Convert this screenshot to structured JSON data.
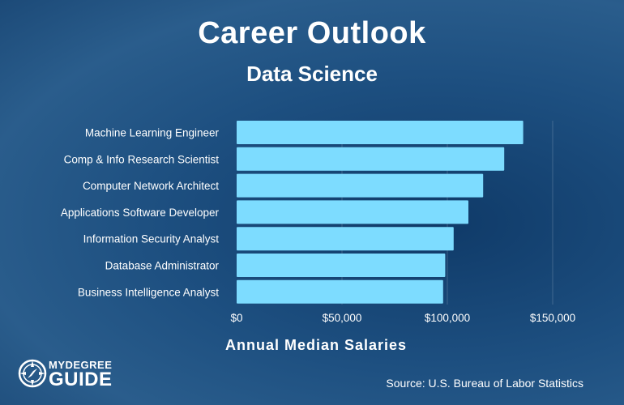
{
  "chart_data": {
    "type": "bar",
    "orientation": "horizontal",
    "title": "Career Outlook",
    "subtitle": "Data Science",
    "xlabel": "Annual Median Salaries",
    "ylabel": "",
    "categories": [
      "Machine Learning Engineer",
      "Comp & Info Research Scientist",
      "Computer Network Architect",
      "Applications Software Developer",
      "Information Security Analyst",
      "Database Administrator",
      "Business Intelligence Analyst"
    ],
    "values": [
      136000,
      127000,
      117000,
      110000,
      103000,
      99000,
      98000
    ],
    "xlim": [
      0,
      150000
    ],
    "xticks": [
      {
        "value": 0,
        "label": "$0"
      },
      {
        "value": 50000,
        "label": "$50,000"
      },
      {
        "value": 100000,
        "label": "$100,000"
      },
      {
        "value": 150000,
        "label": "$150,000"
      }
    ],
    "grid": true,
    "bar_color": "#7ddcff",
    "legend": "none"
  },
  "source": "Source: U.S. Bureau of Labor Statistics",
  "brand": {
    "line1": "MYDEGREE",
    "line2": "GUIDE",
    "icon": "compass-icon"
  }
}
